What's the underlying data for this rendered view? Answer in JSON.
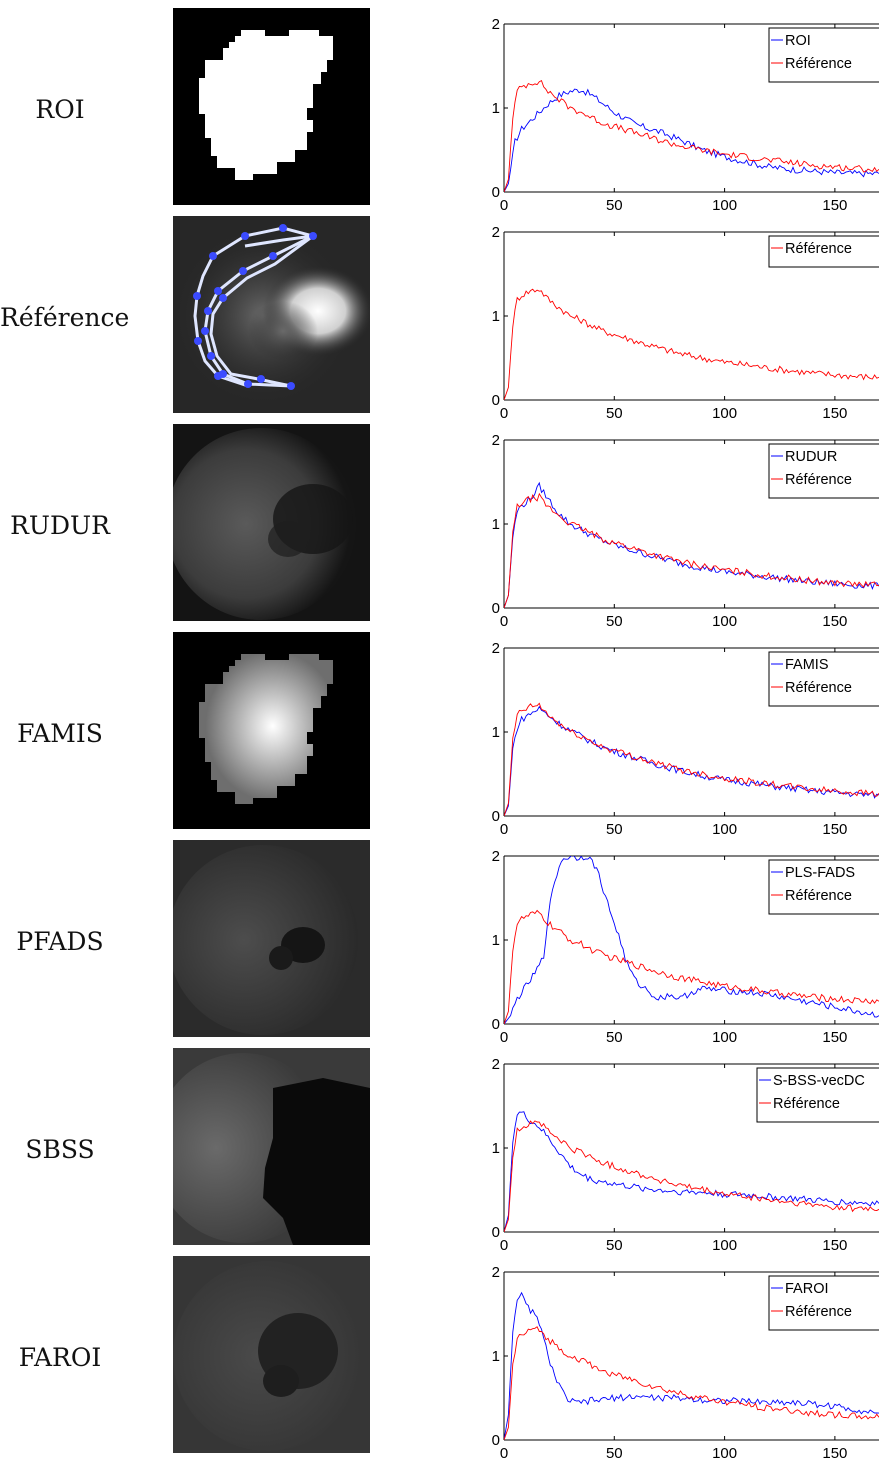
{
  "rows": [
    {
      "label": "ROI",
      "image": "binary-mask"
    },
    {
      "label": "Référence",
      "image": "reference-roi-contour"
    },
    {
      "label": "RUDUR",
      "image": "rudur-factor-image"
    },
    {
      "label": "FAMIS",
      "image": "famis-factor-image"
    },
    {
      "label": "PFADS",
      "image": "pfads-factor-image"
    },
    {
      "label": "SBSS",
      "image": "sbss-factor-image"
    },
    {
      "label": "FAROI",
      "image": "faroi-factor-image"
    }
  ],
  "colors": {
    "method": "#0000ff",
    "reference": "#ff0000"
  },
  "chart_data": [
    {
      "type": "line",
      "xlim": [
        0,
        170
      ],
      "ylim": [
        0,
        2
      ],
      "xticks": [
        "0",
        "50",
        "100",
        "150"
      ],
      "yticks": [
        "0",
        "1",
        "2"
      ],
      "legend_position": "top-right",
      "series": [
        {
          "name": "ROI",
          "color": "#0000ff",
          "x": [
            0,
            2,
            5,
            8,
            12,
            16,
            20,
            25,
            30,
            35,
            40,
            45,
            50,
            60,
            70,
            80,
            90,
            100,
            110,
            120,
            130,
            140,
            150,
            160,
            170
          ],
          "y": [
            0,
            0.1,
            0.6,
            0.75,
            0.85,
            0.95,
            1.05,
            1.15,
            1.2,
            1.22,
            1.15,
            1.05,
            0.95,
            0.8,
            0.72,
            0.62,
            0.5,
            0.42,
            0.36,
            0.3,
            0.27,
            0.25,
            0.23,
            0.22,
            0.22
          ]
        },
        {
          "name": "Référence",
          "color": "#ff0000",
          "x": [
            0,
            2,
            4,
            6,
            8,
            12,
            16,
            20,
            25,
            30,
            35,
            40,
            45,
            50,
            60,
            70,
            80,
            90,
            100,
            110,
            120,
            130,
            140,
            150,
            160,
            170
          ],
          "y": [
            0,
            0.15,
            0.9,
            1.2,
            1.25,
            1.3,
            1.32,
            1.2,
            1.1,
            1.0,
            0.95,
            0.88,
            0.82,
            0.78,
            0.7,
            0.62,
            0.55,
            0.5,
            0.45,
            0.42,
            0.38,
            0.35,
            0.32,
            0.3,
            0.28,
            0.27
          ]
        }
      ]
    },
    {
      "type": "line",
      "xlim": [
        0,
        170
      ],
      "ylim": [
        0,
        2
      ],
      "xticks": [
        "0",
        "50",
        "100",
        "150"
      ],
      "yticks": [
        "0",
        "1",
        "2"
      ],
      "legend_position": "top-right",
      "series": [
        {
          "name": "Référence",
          "color": "#ff0000",
          "x": [
            0,
            2,
            4,
            6,
            8,
            12,
            16,
            20,
            25,
            30,
            35,
            40,
            45,
            50,
            60,
            70,
            80,
            90,
            100,
            110,
            120,
            130,
            140,
            150,
            160,
            170
          ],
          "y": [
            0,
            0.15,
            0.9,
            1.2,
            1.25,
            1.3,
            1.32,
            1.2,
            1.1,
            1.0,
            0.95,
            0.88,
            0.82,
            0.78,
            0.7,
            0.62,
            0.55,
            0.5,
            0.45,
            0.42,
            0.38,
            0.35,
            0.32,
            0.3,
            0.28,
            0.27
          ]
        }
      ]
    },
    {
      "type": "line",
      "xlim": [
        0,
        170
      ],
      "ylim": [
        0,
        2
      ],
      "xticks": [
        "0",
        "50",
        "100",
        "150"
      ],
      "yticks": [
        "0",
        "1",
        "2"
      ],
      "legend_position": "top-right",
      "series": [
        {
          "name": "RUDUR",
          "color": "#0000ff",
          "x": [
            0,
            2,
            4,
            6,
            8,
            12,
            16,
            20,
            25,
            30,
            35,
            40,
            45,
            50,
            60,
            70,
            80,
            90,
            100,
            110,
            120,
            130,
            140,
            150,
            160,
            170
          ],
          "y": [
            0,
            0.15,
            0.85,
            1.15,
            1.22,
            1.3,
            1.45,
            1.3,
            1.12,
            1.0,
            0.93,
            0.86,
            0.8,
            0.75,
            0.67,
            0.6,
            0.53,
            0.48,
            0.43,
            0.4,
            0.37,
            0.34,
            0.31,
            0.29,
            0.27,
            0.26
          ]
        },
        {
          "name": "Référence",
          "color": "#ff0000",
          "x": [
            0,
            2,
            4,
            6,
            8,
            12,
            16,
            20,
            25,
            30,
            35,
            40,
            45,
            50,
            60,
            70,
            80,
            90,
            100,
            110,
            120,
            130,
            140,
            150,
            160,
            170
          ],
          "y": [
            0,
            0.15,
            0.9,
            1.2,
            1.25,
            1.3,
            1.32,
            1.2,
            1.1,
            1.0,
            0.95,
            0.88,
            0.82,
            0.78,
            0.7,
            0.62,
            0.55,
            0.5,
            0.45,
            0.42,
            0.38,
            0.35,
            0.32,
            0.3,
            0.28,
            0.27
          ]
        }
      ]
    },
    {
      "type": "line",
      "xlim": [
        0,
        170
      ],
      "ylim": [
        0,
        2
      ],
      "xticks": [
        "0",
        "50",
        "100",
        "150"
      ],
      "yticks": [
        "0",
        "1",
        "2"
      ],
      "legend_position": "top-right",
      "series": [
        {
          "name": "FAMIS",
          "color": "#0000ff",
          "x": [
            0,
            2,
            4,
            6,
            8,
            12,
            16,
            20,
            25,
            30,
            35,
            40,
            45,
            50,
            60,
            70,
            80,
            90,
            100,
            110,
            120,
            130,
            140,
            150,
            160,
            170
          ],
          "y": [
            0,
            0.12,
            0.8,
            1.05,
            1.15,
            1.22,
            1.28,
            1.2,
            1.1,
            1.02,
            0.95,
            0.88,
            0.82,
            0.77,
            0.69,
            0.61,
            0.54,
            0.48,
            0.43,
            0.4,
            0.36,
            0.33,
            0.3,
            0.28,
            0.26,
            0.25
          ]
        },
        {
          "name": "Référence",
          "color": "#ff0000",
          "x": [
            0,
            2,
            4,
            6,
            8,
            12,
            16,
            20,
            25,
            30,
            35,
            40,
            45,
            50,
            60,
            70,
            80,
            90,
            100,
            110,
            120,
            130,
            140,
            150,
            160,
            170
          ],
          "y": [
            0,
            0.15,
            0.9,
            1.2,
            1.25,
            1.3,
            1.32,
            1.2,
            1.1,
            1.0,
            0.95,
            0.88,
            0.82,
            0.78,
            0.7,
            0.62,
            0.55,
            0.5,
            0.45,
            0.42,
            0.38,
            0.35,
            0.32,
            0.3,
            0.28,
            0.27
          ]
        }
      ]
    },
    {
      "type": "line",
      "xlim": [
        0,
        170
      ],
      "ylim": [
        0,
        2
      ],
      "xticks": [
        "0",
        "50",
        "100",
        "150"
      ],
      "yticks": [
        "0",
        "1",
        "2"
      ],
      "legend_position": "top-right",
      "series": [
        {
          "name": "PLS-FADS",
          "color": "#0000ff",
          "x": [
            0,
            3,
            6,
            10,
            14,
            18,
            20,
            23,
            26,
            30,
            34,
            38,
            42,
            45,
            48,
            52,
            56,
            60,
            65,
            70,
            75,
            80,
            85,
            90,
            100,
            110,
            120,
            130,
            140,
            150,
            160,
            170
          ],
          "y": [
            0,
            0.1,
            0.3,
            0.45,
            0.6,
            0.8,
            1.3,
            1.7,
            1.95,
            2.0,
            1.98,
            2.0,
            1.85,
            1.6,
            1.35,
            1.05,
            0.7,
            0.5,
            0.4,
            0.3,
            0.35,
            0.3,
            0.38,
            0.42,
            0.4,
            0.38,
            0.35,
            0.3,
            0.25,
            0.2,
            0.15,
            0.1
          ]
        },
        {
          "name": "Référence",
          "color": "#ff0000",
          "x": [
            0,
            2,
            4,
            6,
            8,
            12,
            16,
            20,
            25,
            30,
            35,
            40,
            45,
            50,
            60,
            70,
            80,
            90,
            100,
            110,
            120,
            130,
            140,
            150,
            160,
            170
          ],
          "y": [
            0,
            0.15,
            0.9,
            1.2,
            1.25,
            1.3,
            1.32,
            1.2,
            1.1,
            1.0,
            0.95,
            0.88,
            0.82,
            0.78,
            0.7,
            0.62,
            0.55,
            0.5,
            0.45,
            0.42,
            0.38,
            0.35,
            0.32,
            0.3,
            0.28,
            0.27
          ]
        }
      ]
    },
    {
      "type": "line",
      "xlim": [
        0,
        170
      ],
      "ylim": [
        0,
        2
      ],
      "xticks": [
        "0",
        "50",
        "100",
        "150"
      ],
      "yticks": [
        "0",
        "1",
        "2"
      ],
      "legend_position": "top-right",
      "series": [
        {
          "name": "S-BSS-vecDC",
          "color": "#0000ff",
          "x": [
            0,
            2,
            4,
            6,
            8,
            12,
            16,
            20,
            25,
            30,
            35,
            40,
            45,
            50,
            60,
            70,
            80,
            90,
            100,
            110,
            120,
            130,
            140,
            150,
            160,
            170
          ],
          "y": [
            0,
            0.2,
            1.1,
            1.4,
            1.42,
            1.32,
            1.25,
            1.12,
            0.95,
            0.78,
            0.68,
            0.62,
            0.6,
            0.57,
            0.53,
            0.5,
            0.48,
            0.47,
            0.45,
            0.44,
            0.42,
            0.4,
            0.38,
            0.36,
            0.35,
            0.34
          ]
        },
        {
          "name": "Référence",
          "color": "#ff0000",
          "x": [
            0,
            2,
            4,
            6,
            8,
            12,
            16,
            20,
            25,
            30,
            35,
            40,
            45,
            50,
            60,
            70,
            80,
            90,
            100,
            110,
            120,
            130,
            140,
            150,
            160,
            170
          ],
          "y": [
            0,
            0.15,
            0.9,
            1.2,
            1.25,
            1.3,
            1.32,
            1.2,
            1.1,
            1.0,
            0.95,
            0.88,
            0.82,
            0.78,
            0.7,
            0.62,
            0.55,
            0.5,
            0.45,
            0.42,
            0.38,
            0.35,
            0.32,
            0.3,
            0.28,
            0.27
          ]
        }
      ]
    },
    {
      "type": "line",
      "xlim": [
        0,
        170
      ],
      "ylim": [
        0,
        2
      ],
      "xticks": [
        "0",
        "50",
        "100",
        "150"
      ],
      "yticks": [
        "0",
        "1",
        "2"
      ],
      "legend_position": "top-right",
      "series": [
        {
          "name": "FAROI",
          "color": "#0000ff",
          "x": [
            0,
            2,
            4,
            6,
            8,
            10,
            13,
            16,
            20,
            24,
            28,
            32,
            36,
            40,
            45,
            50,
            60,
            70,
            80,
            90,
            100,
            110,
            120,
            130,
            140,
            150,
            160,
            170
          ],
          "y": [
            0,
            0.3,
            1.3,
            1.7,
            1.72,
            1.6,
            1.52,
            1.4,
            1.0,
            0.7,
            0.5,
            0.44,
            0.45,
            0.47,
            0.48,
            0.5,
            0.52,
            0.5,
            0.5,
            0.48,
            0.47,
            0.46,
            0.45,
            0.45,
            0.43,
            0.4,
            0.36,
            0.32
          ]
        },
        {
          "name": "Référence",
          "color": "#ff0000",
          "x": [
            0,
            2,
            4,
            6,
            8,
            12,
            16,
            20,
            25,
            30,
            35,
            40,
            45,
            50,
            60,
            70,
            80,
            90,
            100,
            110,
            120,
            130,
            140,
            150,
            160,
            170
          ],
          "y": [
            0,
            0.15,
            0.9,
            1.2,
            1.25,
            1.3,
            1.32,
            1.2,
            1.1,
            1.0,
            0.95,
            0.88,
            0.82,
            0.78,
            0.7,
            0.62,
            0.55,
            0.5,
            0.45,
            0.42,
            0.38,
            0.35,
            0.32,
            0.3,
            0.28,
            0.27
          ]
        }
      ]
    }
  ]
}
